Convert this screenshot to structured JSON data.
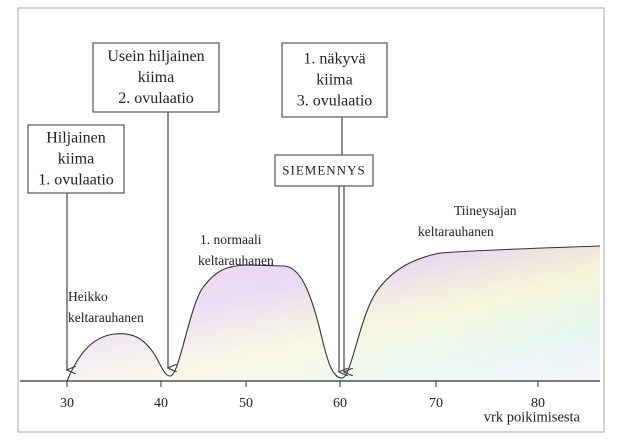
{
  "boxes": [
    {
      "lines": [
        "Hiljainen",
        "kiima",
        "1. ovulaatio"
      ]
    },
    {
      "lines": [
        "Usein hiljainen",
        "kiima",
        "2. ovulaatio"
      ]
    },
    {
      "lines": [
        "1. näkyvä",
        "kiima",
        "3. ovulaatio"
      ]
    },
    {
      "lines": [
        "SIEMENNYS"
      ]
    }
  ],
  "labels": [
    {
      "lines": [
        "Heikko",
        "keltarauhanen"
      ]
    },
    {
      "lines": [
        "1. normaali",
        "keltarauhanen"
      ]
    },
    {
      "lines": [
        "Tiineysajan",
        "keltarauhanen"
      ]
    }
  ],
  "axis": {
    "ticks": [
      "30",
      "40",
      "50",
      "60",
      "70",
      "80"
    ],
    "label": "vrk poikimisesta"
  }
}
